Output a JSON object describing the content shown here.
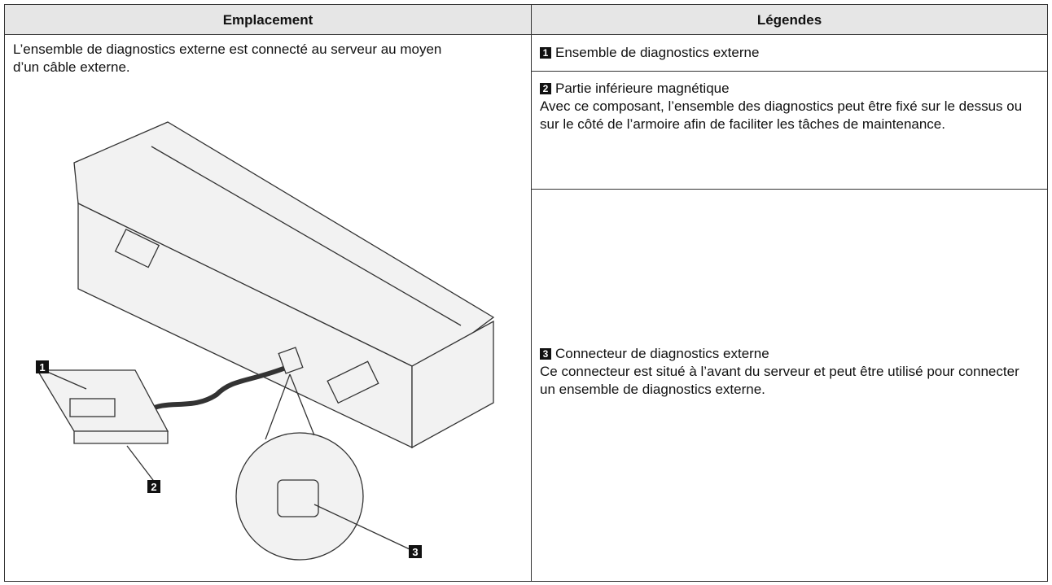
{
  "header": {
    "columns": [
      "Emplacement",
      "Légendes"
    ]
  },
  "location": {
    "text": "L’ensemble de diagnostics externe est connecté au serveur au moyen d’un câble externe."
  },
  "legends": [
    {
      "number": "1",
      "title": "Ensemble de diagnostics externe"
    },
    {
      "number": "2",
      "title": "Partie inférieure magnétique",
      "description": "Avec ce composant, l’ensemble des diagnostics peut être fixé sur le dessus ou sur le côté de l’armoire afin de faciliter les tâches de maintenance."
    },
    {
      "number": "3",
      "title": "Connecteur de diagnostics externe",
      "description": "Ce connecteur est situé à l’avant du serveur et peut être utilisé pour connecter un ensemble de diagnostics externe."
    }
  ]
}
